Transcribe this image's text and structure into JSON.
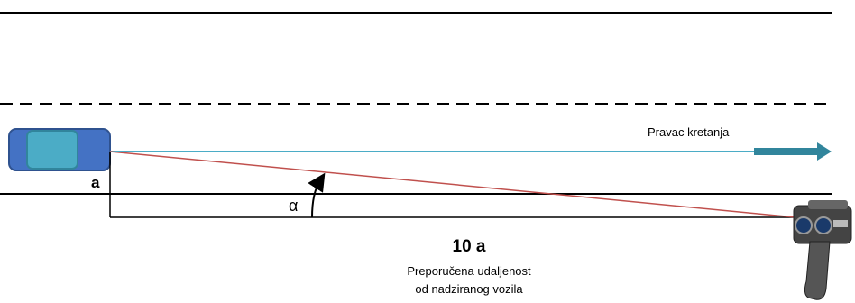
{
  "labels": {
    "direction": "Pravac kretanja",
    "side_distance": "a",
    "angle": "α",
    "distance": "10 a",
    "caption": [
      "Preporučena udaljenost",
      "od nadziranog vozila"
    ]
  }
}
